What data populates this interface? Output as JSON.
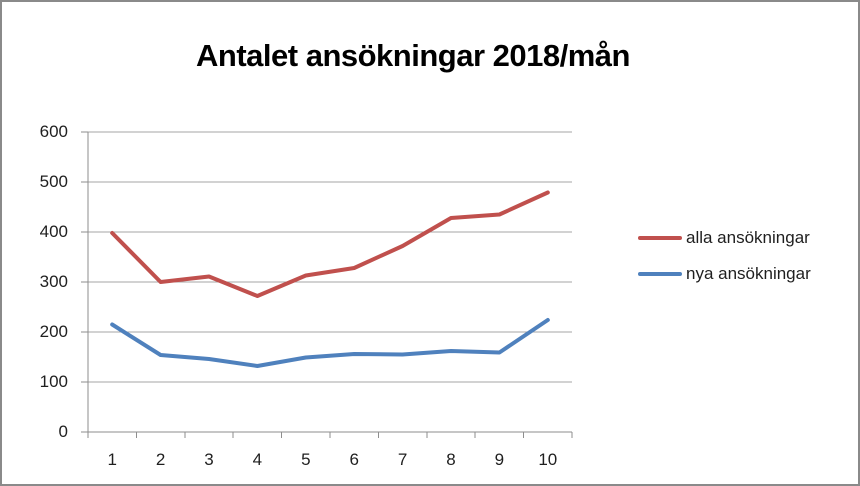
{
  "frame": {
    "background": "#ffffff",
    "border_color": "#8a8a8a"
  },
  "chart_data": {
    "type": "line",
    "title": "Antalet ansökningar 2018/mån",
    "categories": [
      "1",
      "2",
      "3",
      "4",
      "5",
      "6",
      "7",
      "8",
      "9",
      "10"
    ],
    "series": [
      {
        "name": "alla ansökningar",
        "color": "#c0504d",
        "values": [
          398,
          300,
          311,
          272,
          313,
          328,
          372,
          428,
          435,
          479
        ]
      },
      {
        "name": "nya ansökningar",
        "color": "#4f81bd",
        "values": [
          215,
          154,
          146,
          132,
          149,
          156,
          155,
          162,
          159,
          224
        ]
      }
    ],
    "xlabel": "",
    "ylabel": "",
    "ylim": [
      0,
      600
    ],
    "yticks": [
      0,
      100,
      200,
      300,
      400,
      500,
      600
    ],
    "grid": true,
    "legend_position": "right",
    "gridline_color": "#a6a6a6",
    "axis_color": "#8e8e8e",
    "tick_label_color": "#1f1f1f",
    "title_color": "#000000"
  }
}
